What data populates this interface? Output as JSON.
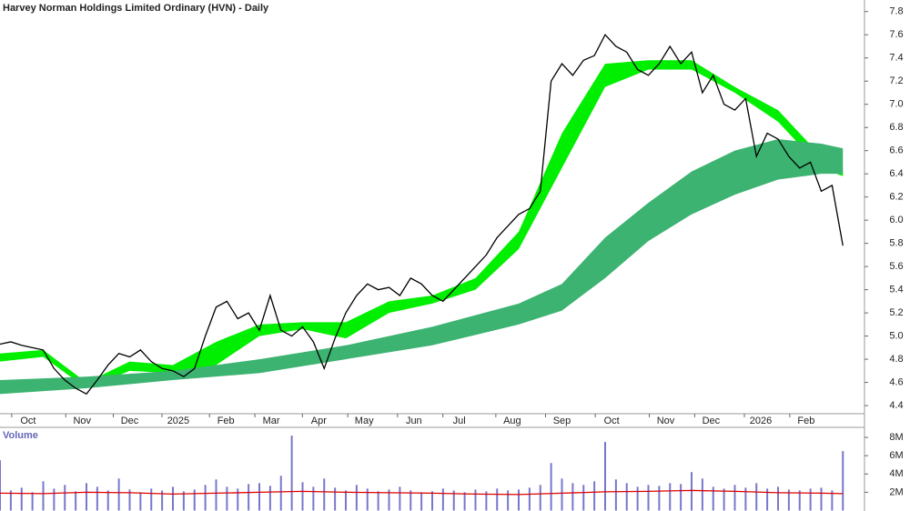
{
  "chart_data": [
    {
      "type": "line",
      "title": "Harvey Norman Holdings Limited Ordinary (HVN) - Daily",
      "x": [
        0,
        1,
        2,
        3,
        4,
        5,
        6,
        7,
        8,
        9,
        10,
        11,
        12,
        13,
        14,
        15,
        16,
        17,
        18,
        19,
        20,
        21,
        22,
        23,
        24,
        25,
        26,
        27,
        28,
        29,
        30,
        31,
        32,
        33,
        34,
        35,
        36,
        37,
        38,
        39,
        40,
        41,
        42,
        43,
        44,
        45,
        46,
        47,
        48,
        49,
        50,
        51,
        52,
        53,
        54,
        55,
        56,
        57,
        58,
        59,
        60,
        61,
        62,
        63,
        64,
        65,
        66,
        67,
        68,
        69,
        70,
        71,
        72,
        73,
        74,
        75,
        76,
        77,
        78
      ],
      "series": [
        {
          "color": "#000000",
          "values": [
            4.93,
            4.95,
            4.92,
            4.9,
            4.88,
            4.72,
            4.62,
            4.55,
            4.5,
            4.62,
            4.75,
            4.85,
            4.82,
            4.88,
            4.78,
            4.72,
            4.7,
            4.65,
            4.72,
            5.0,
            5.25,
            5.3,
            5.15,
            5.2,
            5.05,
            5.35,
            5.05,
            5.0,
            5.08,
            4.95,
            4.72,
            4.98,
            5.2,
            5.35,
            5.45,
            5.4,
            5.42,
            5.35,
            5.5,
            5.45,
            5.35,
            5.3,
            5.4,
            5.5,
            5.6,
            5.7,
            5.85,
            5.95,
            6.05,
            6.1,
            6.25,
            7.2,
            7.35,
            7.25,
            7.38,
            7.42,
            7.6,
            7.5,
            7.45,
            7.3,
            7.25,
            7.35,
            7.5,
            7.35,
            7.45,
            7.1,
            7.25,
            7.0,
            6.95,
            7.05,
            6.55,
            6.75,
            6.7,
            6.55,
            6.45,
            6.5,
            6.25,
            6.3,
            5.78
          ]
        }
      ],
      "bands": [
        {
          "color": "#00ee00",
          "x": [
            0,
            4,
            8,
            12,
            16,
            20,
            24,
            28,
            32,
            36,
            40,
            44,
            48,
            52,
            56,
            60,
            64,
            68,
            72,
            76,
            78
          ],
          "upper": [
            4.85,
            4.88,
            4.6,
            4.78,
            4.75,
            4.95,
            5.1,
            5.12,
            5.12,
            5.3,
            5.35,
            5.5,
            5.9,
            6.75,
            7.35,
            7.38,
            7.38,
            7.15,
            6.95,
            6.55,
            6.45
          ],
          "lower": [
            4.78,
            4.82,
            4.55,
            4.7,
            4.68,
            4.75,
            5.0,
            5.06,
            4.98,
            5.2,
            5.28,
            5.4,
            5.75,
            6.45,
            7.15,
            7.3,
            7.3,
            7.1,
            6.85,
            6.45,
            6.38
          ]
        },
        {
          "color": "#3cb371",
          "x": [
            0,
            8,
            16,
            24,
            32,
            40,
            48,
            52,
            56,
            60,
            64,
            68,
            72,
            76,
            78
          ],
          "upper": [
            4.62,
            4.65,
            4.7,
            4.8,
            4.92,
            5.08,
            5.28,
            5.45,
            5.85,
            6.15,
            6.42,
            6.6,
            6.7,
            6.66,
            6.62
          ],
          "lower": [
            4.5,
            4.55,
            4.62,
            4.68,
            4.8,
            4.92,
            5.1,
            5.22,
            5.5,
            5.82,
            6.05,
            6.22,
            6.35,
            6.4,
            6.4
          ]
        }
      ],
      "xlim": [
        0,
        80
      ],
      "xticks": [
        {
          "value": 2.6,
          "label": "Oct"
        },
        {
          "value": 7.6,
          "label": "Nov"
        },
        {
          "value": 12.0,
          "label": "Dec"
        },
        {
          "value": 16.5,
          "label": "2025"
        },
        {
          "value": 20.9,
          "label": "Feb"
        },
        {
          "value": 25.1,
          "label": "Mar"
        },
        {
          "value": 29.5,
          "label": "Apr"
        },
        {
          "value": 33.7,
          "label": "May"
        },
        {
          "value": 38.3,
          "label": "Jun"
        },
        {
          "value": 42.5,
          "label": "Jul"
        },
        {
          "value": 47.4,
          "label": "Aug"
        },
        {
          "value": 52.0,
          "label": "Sep"
        },
        {
          "value": 56.6,
          "label": "Oct"
        },
        {
          "value": 61.6,
          "label": "Nov"
        },
        {
          "value": 65.8,
          "label": "Dec"
        },
        {
          "value": 70.4,
          "label": "2026"
        },
        {
          "value": 74.6,
          "label": "Feb"
        }
      ],
      "ylim": [
        4.33,
        7.9
      ],
      "yticks": [
        4.4,
        4.6,
        4.8,
        {
          "value": 5.0,
          "label": "5.0"
        },
        5.2,
        5.4,
        5.6,
        5.8,
        {
          "value": 6.0,
          "label": "6.0"
        },
        6.2,
        6.4,
        6.6,
        6.8,
        {
          "value": 7.0,
          "label": "7.0"
        },
        7.2,
        7.4,
        7.6,
        7.8
      ]
    },
    {
      "type": "bar",
      "title": "Volume",
      "color": "#7777cc",
      "x": [
        0,
        1,
        2,
        3,
        4,
        5,
        6,
        7,
        8,
        9,
        10,
        11,
        12,
        13,
        14,
        15,
        16,
        17,
        18,
        19,
        20,
        21,
        22,
        23,
        24,
        25,
        26,
        27,
        28,
        29,
        30,
        31,
        32,
        33,
        34,
        35,
        36,
        37,
        38,
        39,
        40,
        41,
        42,
        43,
        44,
        45,
        46,
        47,
        48,
        49,
        50,
        51,
        52,
        53,
        54,
        55,
        56,
        57,
        58,
        59,
        60,
        61,
        62,
        63,
        64,
        65,
        66,
        67,
        68,
        69,
        70,
        71,
        72,
        73,
        74,
        75,
        76,
        77,
        78
      ],
      "values": [
        5.5,
        2.2,
        2.5,
        2.0,
        3.2,
        2.4,
        2.8,
        2.1,
        3.0,
        2.6,
        2.2,
        3.5,
        2.3,
        2.0,
        2.4,
        2.2,
        2.6,
        2.1,
        2.3,
        2.8,
        3.4,
        2.6,
        2.4,
        2.9,
        3.0,
        2.7,
        3.8,
        8.2,
        3.1,
        2.6,
        3.5,
        2.5,
        2.2,
        2.8,
        2.4,
        2.1,
        2.3,
        2.6,
        2.2,
        2.0,
        2.1,
        2.4,
        2.2,
        2.0,
        2.3,
        2.1,
        2.4,
        2.2,
        2.3,
        2.5,
        2.8,
        5.2,
        3.5,
        3.0,
        2.8,
        3.2,
        7.5,
        3.4,
        3.0,
        2.6,
        2.8,
        2.7,
        3.0,
        2.9,
        4.2,
        3.5,
        2.6,
        2.4,
        2.8,
        2.5,
        3.0,
        2.4,
        2.6,
        2.3,
        2.2,
        2.4,
        2.5,
        2.2,
        6.5
      ],
      "average": {
        "color": "#dd0000",
        "x": [
          0,
          4,
          8,
          12,
          16,
          20,
          24,
          28,
          32,
          36,
          40,
          44,
          48,
          52,
          56,
          60,
          64,
          68,
          72,
          76,
          78
        ],
        "values": [
          1.9,
          1.85,
          2.0,
          1.95,
          1.8,
          1.9,
          2.0,
          2.1,
          2.0,
          1.95,
          1.9,
          1.8,
          1.75,
          1.9,
          2.05,
          2.1,
          2.2,
          2.1,
          1.95,
          1.9,
          1.85
        ]
      },
      "xlim": [
        0,
        80
      ],
      "ylim": [
        0,
        9.1
      ],
      "yticks": [
        {
          "value": 2,
          "label": "2M"
        },
        {
          "value": 4,
          "label": "4M"
        },
        {
          "value": 6,
          "label": "6M"
        },
        {
          "value": 8,
          "label": "8M"
        }
      ]
    }
  ]
}
